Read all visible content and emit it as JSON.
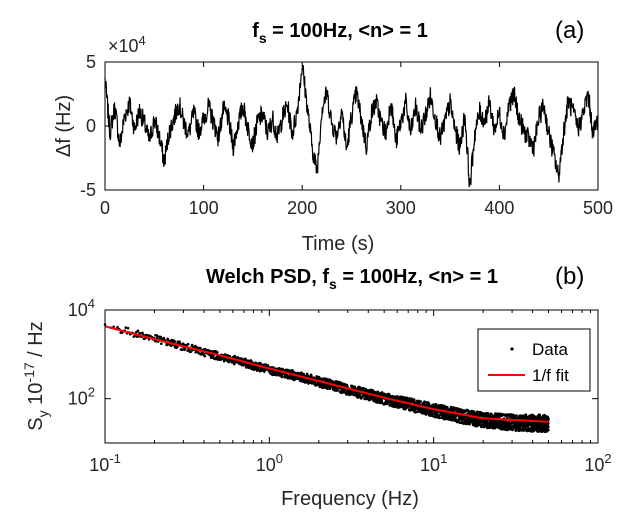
{
  "chart_data": [
    {
      "type": "line",
      "panel_label": "(a)",
      "title_parts": [
        "f",
        "s",
        " = 100Hz, <n> = 1"
      ],
      "xlabel": "Time (s)",
      "ylabel": "Δf (Hz)",
      "multiplier": {
        "base": "×10",
        "exp": "4"
      },
      "xlim": [
        0,
        500
      ],
      "ylim": [
        -5,
        5
      ],
      "xticks": [
        0,
        100,
        200,
        300,
        400,
        500
      ],
      "yticks": [
        -5,
        0,
        5
      ],
      "grid": false,
      "color": "#000000",
      "series": [
        {
          "x": [
            0,
            5,
            10,
            15,
            20,
            25,
            30,
            35,
            40,
            45,
            50,
            55,
            60,
            65,
            70,
            75,
            80,
            85,
            90,
            95,
            100,
            105,
            110,
            115,
            120,
            125,
            130,
            135,
            140,
            145,
            150,
            155,
            160,
            165,
            170,
            175,
            180,
            185,
            190,
            195,
            200,
            205,
            210,
            215,
            220,
            225,
            230,
            235,
            240,
            245,
            250,
            255,
            260,
            265,
            270,
            275,
            280,
            285,
            290,
            295,
            300,
            305,
            310,
            315,
            320,
            325,
            330,
            335,
            340,
            345,
            350,
            355,
            360,
            365,
            370,
            375,
            380,
            385,
            390,
            395,
            400,
            405,
            410,
            415,
            420,
            425,
            430,
            435,
            440,
            445,
            450,
            455,
            460,
            465,
            470,
            475,
            480,
            485,
            490,
            495,
            500
          ],
          "values": [
            3.6,
            -0.5,
            1.5,
            -1.5,
            0.8,
            1.8,
            -0.3,
            1.2,
            0.2,
            -1.2,
            0.5,
            -0.8,
            -2.8,
            -0.5,
            0.6,
            1.8,
            0.2,
            -0.6,
            1.0,
            -0.4,
            0.5,
            1.5,
            0.3,
            -0.9,
            1.3,
            0.6,
            -1.6,
            0.2,
            1.6,
            -0.2,
            -1.4,
            0.4,
            0.9,
            -0.6,
            0.6,
            -0.9,
            0.7,
            1.6,
            -0.6,
            1.2,
            4.8,
            1.6,
            -1.6,
            -3.6,
            1.4,
            2.6,
            0.2,
            -0.8,
            1.3,
            -1.9,
            0.8,
            2.6,
            0.5,
            -1.6,
            0.9,
            1.9,
            0.3,
            -0.6,
            2.0,
            -1.3,
            0.3,
            1.8,
            -0.6,
            1.5,
            -0.3,
            0.8,
            2.3,
            0.7,
            -1.0,
            0.4,
            1.8,
            -0.3,
            -1.7,
            0.9,
            -4.8,
            -0.6,
            1.1,
            0.4,
            1.8,
            -0.3,
            1.0,
            -0.7,
            1.8,
            2.4,
            0.6,
            -0.4,
            -1.1,
            -1.6,
            0.6,
            1.6,
            -0.6,
            -2.2,
            -4.0,
            -0.5,
            2.0,
            1.0,
            -0.2,
            1.0,
            2.5,
            -0.6,
            0.6
          ]
        }
      ]
    },
    {
      "type": "scatter",
      "panel_label": "(b)",
      "title_parts": [
        "Welch PSD, f",
        "s",
        " = 100Hz, <n> = 1"
      ],
      "xlabel": "Frequency (Hz)",
      "ylabel_parts": [
        "S",
        "y",
        " 10",
        "-17",
        " / Hz"
      ],
      "xscale": "log",
      "yscale": "log",
      "xlim": [
        0.1,
        100
      ],
      "ylim": [
        10,
        10000
      ],
      "xticks": [
        {
          "value": 0.1,
          "base": "10",
          "exp": "-1"
        },
        {
          "value": 1,
          "base": "10",
          "exp": "0"
        },
        {
          "value": 10,
          "base": "10",
          "exp": "1"
        },
        {
          "value": 100,
          "base": "10",
          "exp": "2"
        }
      ],
      "yticks": [
        {
          "value": 100,
          "base": "10",
          "exp": "2"
        },
        {
          "value": 10000,
          "base": "10",
          "exp": "4"
        }
      ],
      "grid": false,
      "legend_position": "top-right",
      "series": [
        {
          "name": "Data",
          "color": "#000000",
          "x": [
            0.1,
            0.15,
            0.2,
            0.3,
            0.5,
            0.7,
            1,
            1.5,
            2,
            3,
            5,
            7,
            10,
            15,
            20,
            30,
            40,
            50
          ],
          "values": [
            4500,
            3000,
            2300,
            1500,
            900,
            650,
            450,
            320,
            240,
            160,
            100,
            75,
            55,
            40,
            33,
            29,
            28,
            28
          ]
        },
        {
          "name": "1/f fit",
          "color": "#ff0000",
          "x": [
            0.1,
            0.2,
            0.5,
            1,
            2,
            5,
            10,
            20,
            50
          ],
          "values": [
            4300,
            2200,
            950,
            480,
            250,
            105,
            58,
            36,
            30
          ]
        }
      ]
    }
  ]
}
